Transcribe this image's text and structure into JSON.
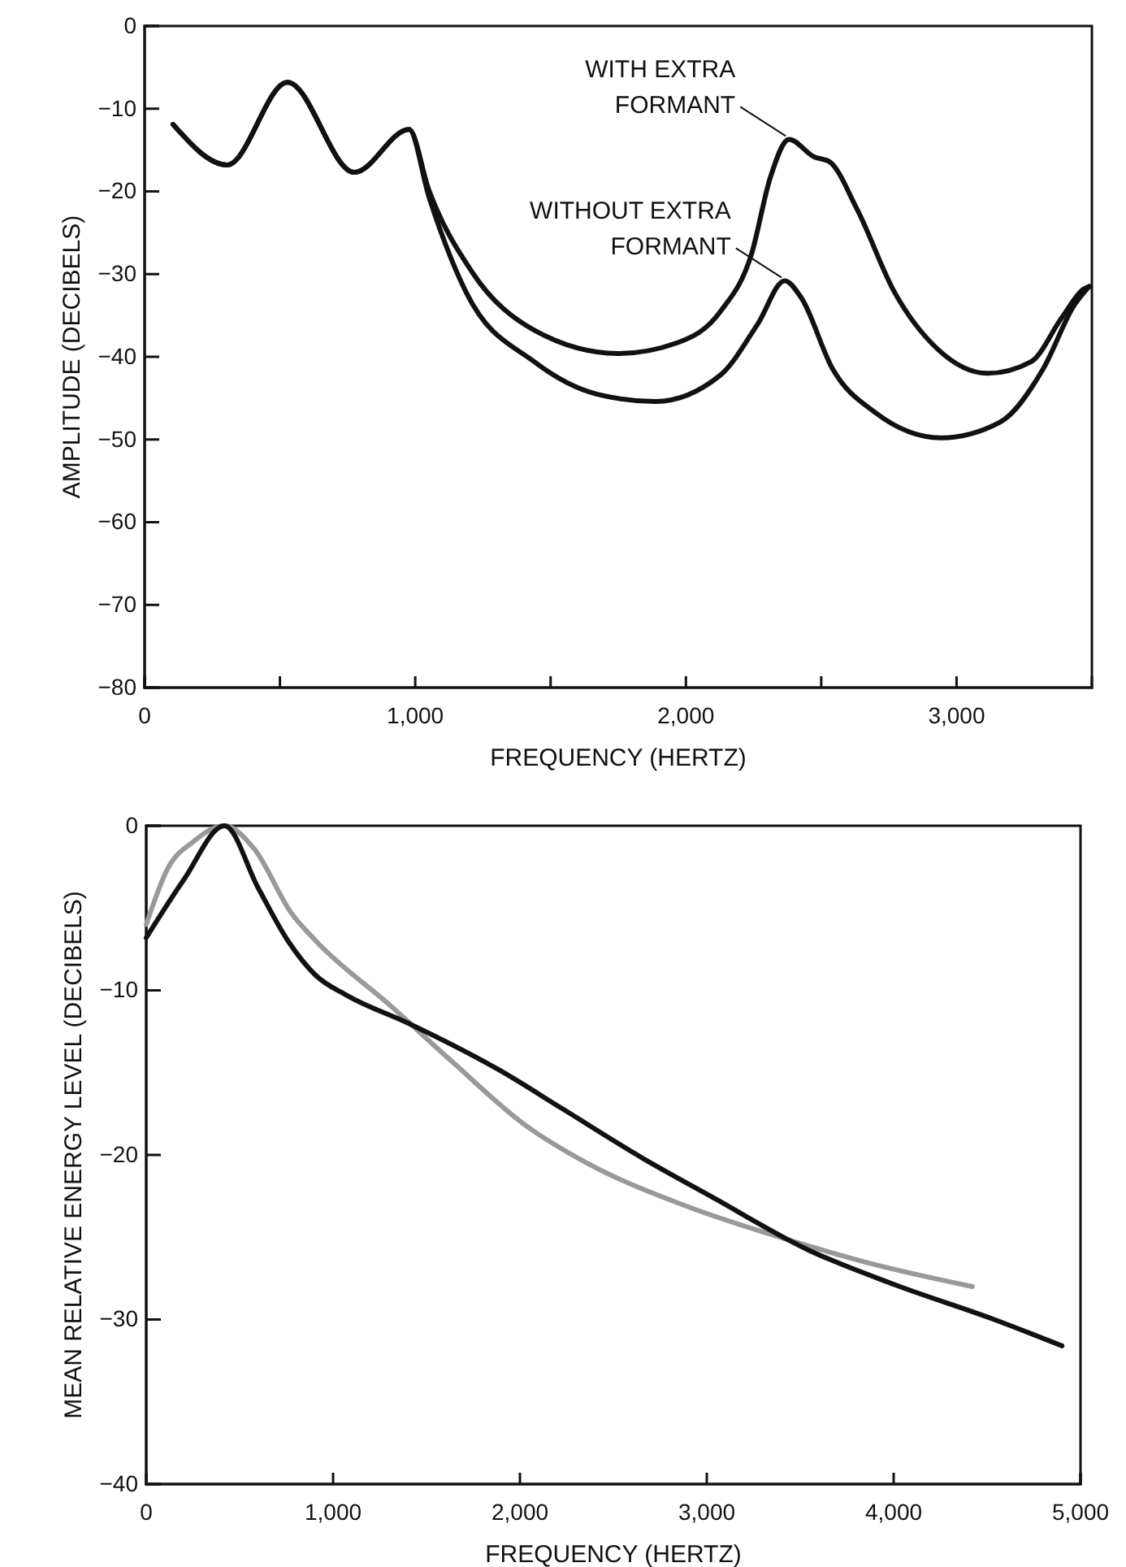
{
  "chart_data": [
    {
      "type": "line",
      "xlabel": "FREQUENCY (HERTZ)",
      "ylabel": "AMPLITUDE (DECIBELS)",
      "xlim": [
        0,
        3500
      ],
      "ylim": [
        -80,
        0
      ],
      "xticks": [
        0,
        {
          "value": 500,
          "label": null
        },
        {
          "value": 1000,
          "label": "1,000"
        },
        {
          "value": 1500,
          "label": null
        },
        {
          "value": 2000,
          "label": "2,000"
        },
        {
          "value": 2500,
          "label": null
        },
        {
          "value": 3000,
          "label": "3,000"
        }
      ],
      "yticks": [
        0,
        {
          "value": -10,
          "label": "−10"
        },
        {
          "value": -20,
          "label": "−20"
        },
        {
          "value": -30,
          "label": "−30"
        },
        {
          "value": -40,
          "label": "−40"
        },
        {
          "value": -50,
          "label": "−50"
        },
        {
          "value": -60,
          "label": "−60"
        },
        {
          "value": -70,
          "label": "−70"
        },
        {
          "value": -80,
          "label": "−80"
        }
      ],
      "grid": false,
      "marker": "none",
      "line_style": "solid",
      "series": [
        {
          "color": "#111111",
          "x": [
            105,
            305,
            528,
            775,
            977,
            1050,
            1211,
            1440,
            1750,
            1968,
            2128,
            2243,
            2312,
            2381,
            2472,
            2530,
            2633,
            2771,
            2931,
            3115,
            3275,
            3390,
            3470,
            3490
          ],
          "values": [
            -11.9,
            -16.8,
            -6.8,
            -17.7,
            -12.5,
            -19.8,
            -29.8,
            -36.8,
            -39.6,
            -38.3,
            -34.5,
            -27.5,
            -18.3,
            -13.7,
            -15.8,
            -16.4,
            -22.2,
            -32.2,
            -39.1,
            -42,
            -40.6,
            -35.2,
            -31.8,
            -31.5
          ]
        },
        {
          "color": "#111111",
          "x": [
            105,
            305,
            528,
            775,
            977,
            1050,
            1188,
            1440,
            1670,
            1888,
            2128,
            2266,
            2365,
            2427,
            2541,
            2702,
            2943,
            3161,
            3321,
            3436,
            3490
          ],
          "values": [
            -11.9,
            -16.8,
            -6.8,
            -17.7,
            -12.5,
            -20.6,
            -32.2,
            -40.6,
            -44.5,
            -45.4,
            -42.2,
            -36,
            -30.8,
            -32.9,
            -41.4,
            -46.8,
            -49.8,
            -47.9,
            -41.4,
            -33.7,
            -31.5
          ]
        }
      ],
      "annotations": [
        {
          "text": "WITH EXTRA FORMANT",
          "x": 2381,
          "y": -13.7
        },
        {
          "text": "WITHOUT EXTRA FORMANT",
          "x": 2365,
          "y": -30.8
        }
      ]
    },
    {
      "type": "line",
      "xlabel": "FREQUENCY (HERTZ)",
      "ylabel": "MEAN RELATIVE ENERGY LEVEL (DECIBELS)",
      "xlim": [
        0,
        5000
      ],
      "ylim": [
        -40,
        0
      ],
      "xticks": [
        0,
        {
          "value": 1000,
          "label": "1,000"
        },
        {
          "value": 2000,
          "label": "2,000"
        },
        {
          "value": 3000,
          "label": "3,000"
        },
        {
          "value": 4000,
          "label": "4,000"
        },
        {
          "value": 5000,
          "label": "5,000"
        }
      ],
      "yticks": [
        0,
        {
          "value": -10,
          "label": "−10"
        },
        {
          "value": -20,
          "label": "−20"
        },
        {
          "value": -30,
          "label": "−30"
        },
        {
          "value": -40,
          "label": "−40"
        }
      ],
      "grid": false,
      "marker": "none",
      "line_style": "solid",
      "series": [
        {
          "color": "#999999",
          "x": [
            0,
            115,
            248,
            419,
            578,
            776,
            908,
            1304,
            1634,
            2030,
            2360,
            2888,
            3449,
            3878,
            4422
          ],
          "values": [
            -6,
            -2.6,
            -1,
            0,
            -1.4,
            -5.3,
            -7,
            -10.9,
            -14.3,
            -18.2,
            -20.5,
            -23.1,
            -25.2,
            -26.6,
            -28
          ]
        },
        {
          "color": "#111111",
          "x": [
            0,
            200,
            419,
            600,
            759,
            908,
            1073,
            1403,
            1898,
            2228,
            2657,
            3020,
            3548,
            4010,
            4538,
            4901
          ],
          "values": [
            -6.8,
            -3.3,
            0,
            -3.8,
            -7,
            -9.1,
            -10.3,
            -12,
            -14.9,
            -17.2,
            -20.2,
            -22.5,
            -25.8,
            -27.9,
            -30,
            -31.6
          ]
        }
      ]
    }
  ]
}
